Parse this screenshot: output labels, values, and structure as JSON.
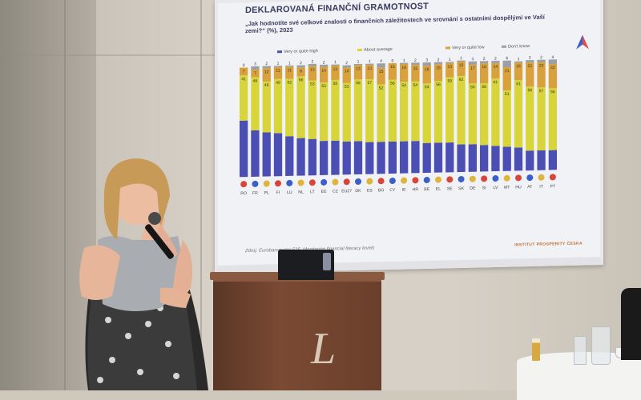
{
  "slide": {
    "title": "DEKLAROVANÁ FINANČNÍ GRAMOTNOST",
    "question": "„Jak hodnotíte své celkové znalosti o finančních záležitostech ve srovnání s ostatními dospělými ve Vaší zemi?“ (%), 2023",
    "source": "Zdroj: Eurobarometer 525: Monitoring financial literacy levels",
    "brand": "INSTITUT PROSPERITY ČESKA"
  },
  "chart_data": {
    "type": "bar",
    "stacked": true,
    "categories": [
      "RO",
      "FR",
      "PL",
      "FI",
      "LU",
      "NL",
      "LT",
      "EE",
      "CZ",
      "EU27",
      "DK",
      "ES",
      "BG",
      "CY",
      "IE",
      "HR",
      "BE",
      "EL",
      "SE",
      "SK",
      "DE",
      "SI",
      "LV",
      "MT",
      "HU",
      "AT",
      "IT",
      "PT"
    ],
    "series": [
      {
        "name": "Very or quite high",
        "color": "#4b4fb3",
        "values": [
          51,
          42,
          40,
          39,
          36,
          34,
          33,
          31,
          31,
          30,
          30,
          29,
          29,
          29,
          29,
          29,
          27,
          27,
          27,
          25,
          25,
          24,
          23,
          22,
          21,
          18,
          18,
          18
        ]
      },
      {
        "name": "About average",
        "color": "#d8d53a",
        "values": [
          41,
          48,
          46,
          49,
          52,
          56,
          53,
          53,
          55,
          53,
          56,
          57,
          52,
          56,
          54,
          54,
          54,
          56,
          59,
          62,
          55,
          56,
          61,
          51,
          61,
          58,
          57,
          56
        ]
      },
      {
        "name": "Very or quite low",
        "color": "#d8a13b",
        "values": [
          7,
          7,
          12,
          11,
          11,
          8,
          13,
          14,
          13,
          14,
          13,
          13,
          15,
          15,
          16,
          15,
          16,
          15,
          13,
          13,
          17,
          18,
          14,
          21,
          16,
          22,
          23,
          22
        ]
      },
      {
        "name": "Don't know",
        "color": "#9aa0a6",
        "values": [
          0,
          3,
          2,
          1,
          1,
          2,
          2,
          2,
          1,
          2,
          1,
          1,
          4,
          0,
          1,
          2,
          3,
          2,
          1,
          1,
          3,
          2,
          2,
          6,
          1,
          2,
          2,
          4
        ]
      }
    ],
    "ylim": [
      0,
      100
    ]
  },
  "colors": {
    "screen_bg": "#f1f2f6",
    "title_text": "#3a3c60",
    "podium": "#6a3f2b"
  },
  "scene": {
    "podium_letter": "L"
  }
}
